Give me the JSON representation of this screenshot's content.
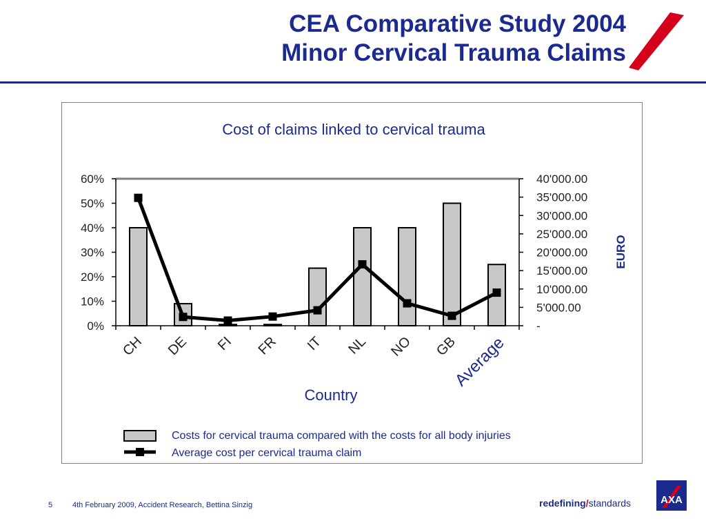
{
  "header": {
    "title_line1": "CEA Comparative Study 2004",
    "title_line2": "Minor Cervical Trauma Claims"
  },
  "colors": {
    "brand_blue": "#1a2a8f",
    "brand_red": "#d6001c",
    "bar_fill": "#c8c8c8",
    "line": "#000000"
  },
  "chart_data": {
    "type": "bar",
    "title": "Cost of claims linked to cervical trauma",
    "xlabel": "Country",
    "ylabel_left": "",
    "ylabel_right": "EURO",
    "categories": [
      "CH",
      "DE",
      "FI",
      "FR",
      "IT",
      "NL",
      "NO",
      "GB",
      "Average"
    ],
    "highlighted_category": "Average",
    "y_left_ticks": [
      "0%",
      "10%",
      "20%",
      "30%",
      "40%",
      "50%",
      "60%"
    ],
    "y_left_lim": [
      0,
      60
    ],
    "y_right_ticks": [
      "-",
      "5'000.00",
      "10'000.00",
      "15'000.00",
      "20'000.00",
      "25'000.00",
      "30'000.00",
      "35'000.00",
      "40'000.00"
    ],
    "y_right_lim": [
      0,
      40000
    ],
    "series": [
      {
        "name": "Costs for cervical trauma compared with the costs for all body injuries",
        "kind": "bar",
        "axis": "left",
        "values": [
          40,
          9,
          0.5,
          0.5,
          23.5,
          40,
          40,
          50,
          25
        ]
      },
      {
        "name": "Average cost per cervical trauma claim",
        "kind": "line",
        "axis": "right",
        "values": [
          34800,
          2400,
          1400,
          2500,
          4200,
          16700,
          6100,
          2700,
          9000
        ]
      }
    ],
    "legend_placement": "bottom"
  },
  "footer": {
    "page_number": "5",
    "text": "4th February 2009, Accident Research, Bettina Sinzig",
    "tagline_bold": "redefining",
    "tagline_light": "standards",
    "logo_text": "AXA"
  }
}
